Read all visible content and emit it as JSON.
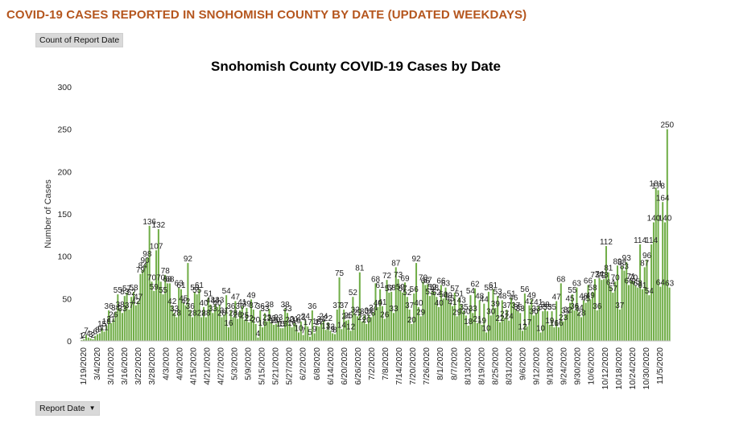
{
  "header": {
    "title": "COVID-19 CASES REPORTED IN SNOHOMISH COUNTY BY DATE (UPDATED WEEKDAYS)",
    "value_field": "Count of Report Date",
    "axis_field": "Report Date",
    "axis_field_icon": "dropdown-arrow-icon"
  },
  "colors": {
    "bar": "#70ad47",
    "title": "#b5561e",
    "button": "#d9d9d9"
  },
  "chart_data": {
    "type": "bar",
    "title": "Snohomish County COVID-19 Cases by Date",
    "xlabel": "",
    "ylabel": "Number of Cases",
    "ylim": [
      0,
      300
    ],
    "yticks": [
      0,
      50,
      100,
      150,
      200,
      250,
      300
    ],
    "xtick_labels": [
      "1/19/2020",
      "3/4/2020",
      "3/10/2020",
      "3/16/2020",
      "3/22/2020",
      "3/28/2020",
      "4/3/2020",
      "4/9/2020",
      "4/15/2020",
      "4/21/2020",
      "4/27/2020",
      "5/3/2020",
      "5/9/2020",
      "5/15/2020",
      "5/21/2020",
      "5/27/2020",
      "6/2/2020",
      "6/8/2020",
      "6/14/2020",
      "6/20/2020",
      "6/26/2020",
      "7/2/2020",
      "7/8/2020",
      "7/14/2020",
      "7/20/2020",
      "7/26/2020",
      "8/1/2020",
      "8/7/2020",
      "8/13/2020",
      "8/19/2020",
      "8/25/2020",
      "8/31/2020",
      "9/6/2020",
      "9/12/2020",
      "9/18/2020",
      "9/24/2020",
      "9/30/2020",
      "10/6/2020",
      "10/12/2020",
      "10/18/2020",
      "10/24/2020",
      "10/30/2020",
      "11/5/2020"
    ],
    "values": [
      1,
      2,
      7,
      4,
      3,
      2,
      6,
      8,
      9,
      15,
      11,
      18,
      36,
      21,
      26,
      34,
      55,
      38,
      33,
      53,
      57,
      37,
      52,
      58,
      42,
      47,
      79,
      84,
      90,
      98,
      136,
      70,
      59,
      107,
      132,
      70,
      55,
      78,
      68,
      68,
      42,
      33,
      28,
      63,
      61,
      45,
      42,
      92,
      36,
      28,
      58,
      55,
      61,
      28,
      40,
      28,
      51,
      43,
      33,
      43,
      40,
      43,
      28,
      31,
      54,
      16,
      36,
      28,
      47,
      26,
      36,
      41,
      25,
      39,
      22,
      49,
      37,
      20,
      4,
      36,
      16,
      33,
      23,
      38,
      22,
      19,
      20,
      23,
      15,
      15,
      38,
      33,
      20,
      16,
      21,
      19,
      10,
      23,
      7,
      24,
      17,
      5,
      36,
      9,
      18,
      17,
      21,
      24,
      13,
      22,
      12,
      9,
      8,
      37,
      75,
      14,
      37,
      24,
      25,
      12,
      52,
      32,
      29,
      81,
      23,
      30,
      20,
      31,
      28,
      34,
      68,
      40,
      61,
      41,
      26,
      72,
      57,
      58,
      33,
      87,
      73,
      59,
      57,
      69,
      52,
      37,
      20,
      56,
      92,
      40,
      29,
      70,
      66,
      67,
      53,
      59,
      58,
      52,
      40,
      66,
      50,
      63,
      49,
      45,
      41,
      57,
      29,
      51,
      43,
      35,
      30,
      18,
      54,
      33,
      62,
      21,
      48,
      19,
      44,
      10,
      58,
      30,
      61,
      39,
      53,
      22,
      48,
      27,
      37,
      24,
      51,
      46,
      37,
      35,
      33,
      12,
      56,
      17,
      42,
      49,
      30,
      33,
      41,
      10,
      35,
      38,
      35,
      19,
      35,
      16,
      47,
      16,
      68,
      23,
      31,
      32,
      45,
      55,
      36,
      63,
      34,
      28,
      48,
      45,
      66,
      49,
      58,
      73,
      36,
      74,
      72,
      73,
      112,
      81,
      64,
      57,
      70,
      89,
      37,
      88,
      83,
      93,
      66,
      71,
      70,
      65,
      63,
      114,
      61,
      87,
      96,
      54,
      114,
      140,
      181,
      178,
      64,
      164,
      140,
      250,
      63
    ]
  }
}
